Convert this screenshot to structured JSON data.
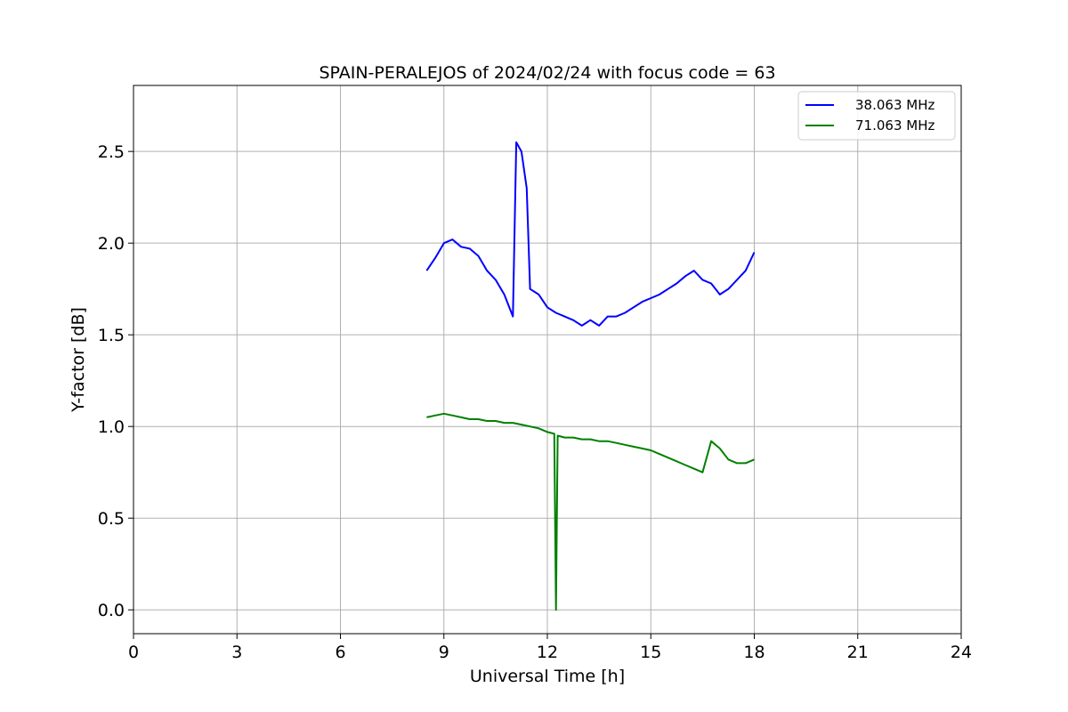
{
  "chart_data": {
    "type": "line",
    "title": "SPAIN-PERALEJOS of 2024/02/24 with focus code = 63",
    "xlabel": "Universal Time [h]",
    "ylabel": "Y-factor [dB]",
    "xlim": [
      0,
      24
    ],
    "ylim": [
      -0.13,
      2.86
    ],
    "xticks": [
      0,
      3,
      6,
      9,
      12,
      15,
      18,
      21,
      24
    ],
    "yticks": [
      0.0,
      0.5,
      1.0,
      1.5,
      2.0,
      2.5
    ],
    "xtick_labels": [
      "0",
      "3",
      "6",
      "9",
      "12",
      "15",
      "18",
      "21",
      "24"
    ],
    "ytick_labels": [
      "0.0",
      "0.5",
      "1.0",
      "1.5",
      "2.0",
      "2.5"
    ],
    "grid": true,
    "legend_position": "top-right",
    "series": [
      {
        "name": "38.063 MHz",
        "color": "#0000ff",
        "x": [
          8.5,
          8.75,
          9.0,
          9.25,
          9.5,
          9.75,
          10.0,
          10.25,
          10.5,
          10.75,
          11.0,
          11.1,
          11.25,
          11.4,
          11.5,
          11.75,
          12.0,
          12.25,
          12.5,
          12.75,
          13.0,
          13.25,
          13.5,
          13.75,
          14.0,
          14.25,
          14.5,
          14.75,
          15.0,
          15.25,
          15.5,
          15.75,
          16.0,
          16.25,
          16.5,
          16.75,
          17.0,
          17.25,
          17.5,
          17.75,
          18.0
        ],
        "values": [
          1.85,
          1.92,
          2.0,
          2.02,
          1.98,
          1.97,
          1.93,
          1.85,
          1.8,
          1.72,
          1.6,
          2.55,
          2.5,
          2.3,
          1.75,
          1.72,
          1.65,
          1.62,
          1.6,
          1.58,
          1.55,
          1.58,
          1.55,
          1.6,
          1.6,
          1.62,
          1.65,
          1.68,
          1.7,
          1.72,
          1.75,
          1.78,
          1.82,
          1.85,
          1.8,
          1.78,
          1.72,
          1.75,
          1.8,
          1.85,
          1.95
        ]
      },
      {
        "name": "71.063 MHz",
        "color": "#008000",
        "x": [
          8.5,
          8.75,
          9.0,
          9.25,
          9.5,
          9.75,
          10.0,
          10.25,
          10.5,
          10.75,
          11.0,
          11.25,
          11.5,
          11.75,
          12.0,
          12.2,
          12.25,
          12.3,
          12.5,
          12.75,
          13.0,
          13.25,
          13.5,
          13.75,
          14.0,
          14.25,
          14.5,
          14.75,
          15.0,
          15.25,
          15.5,
          15.75,
          16.0,
          16.25,
          16.5,
          16.75,
          17.0,
          17.25,
          17.5,
          17.75,
          18.0
        ],
        "values": [
          1.05,
          1.06,
          1.07,
          1.06,
          1.05,
          1.04,
          1.04,
          1.03,
          1.03,
          1.02,
          1.02,
          1.01,
          1.0,
          0.99,
          0.97,
          0.96,
          0.0,
          0.95,
          0.94,
          0.94,
          0.93,
          0.93,
          0.92,
          0.92,
          0.91,
          0.9,
          0.89,
          0.88,
          0.87,
          0.85,
          0.83,
          0.81,
          0.79,
          0.77,
          0.75,
          0.92,
          0.88,
          0.82,
          0.8,
          0.8,
          0.82
        ]
      }
    ]
  }
}
